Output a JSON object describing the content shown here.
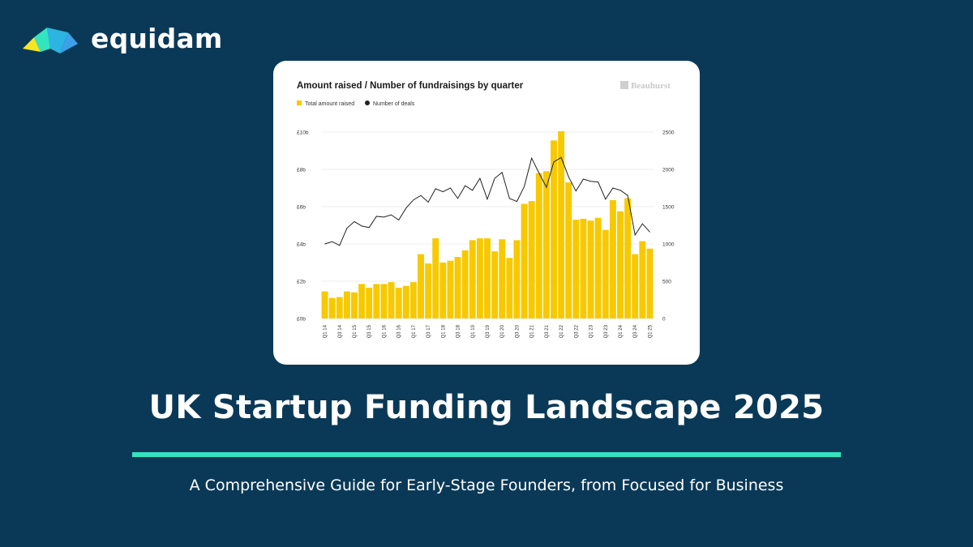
{
  "brand": {
    "name": "equidam"
  },
  "page": {
    "title": "UK Startup Funding Landscape 2025",
    "subtitle": "A Comprehensive Guide for Early-Stage Founders, from Focused for Business"
  },
  "colors": {
    "background": "#0a3957",
    "accent": "#34e3c0",
    "bar": "#f7c900",
    "line": "#222222"
  },
  "chart_data": {
    "type": "bar",
    "title": "Amount raised / Number of fundraisings by quarter",
    "source": "Beauhurst",
    "legend": {
      "placement": "top-left",
      "items": [
        "Total amount raised",
        "Number of deals"
      ]
    },
    "x": [
      "Q1 14",
      "Q2 14",
      "Q3 14",
      "Q4 14",
      "Q1 15",
      "Q2 15",
      "Q3 15",
      "Q4 15",
      "Q1 16",
      "Q2 16",
      "Q3 16",
      "Q4 16",
      "Q1 17",
      "Q2 17",
      "Q3 17",
      "Q4 17",
      "Q1 18",
      "Q2 18",
      "Q3 18",
      "Q4 18",
      "Q1 19",
      "Q2 19",
      "Q3 19",
      "Q4 19",
      "Q1 20",
      "Q2 20",
      "Q3 20",
      "Q4 20",
      "Q1 21",
      "Q2 21",
      "Q3 21",
      "Q4 21",
      "Q1 22",
      "Q2 22",
      "Q3 22",
      "Q4 22",
      "Q1 23",
      "Q2 23",
      "Q3 23",
      "Q4 23",
      "Q1 24",
      "Q2 24",
      "Q3 24",
      "Q4 24",
      "Q1 25"
    ],
    "x_tick_labels": [
      "Q1 14",
      "Q3 14",
      "Q1 15",
      "Q3 15",
      "Q1 16",
      "Q3 16",
      "Q1 17",
      "Q3 17",
      "Q1 18",
      "Q3 18",
      "Q1 19",
      "Q3 19",
      "Q1 20",
      "Q3 20",
      "Q1 21",
      "Q3 21",
      "Q1 22",
      "Q3 22",
      "Q1 23",
      "Q3 23",
      "Q1 24",
      "Q3 24",
      "Q1 25"
    ],
    "series": [
      {
        "name": "Total amount raised",
        "type": "bar",
        "axis": "left",
        "values": [
          1.45,
          1.1,
          1.15,
          1.45,
          1.4,
          1.85,
          1.65,
          1.85,
          1.85,
          1.95,
          1.65,
          1.75,
          1.95,
          3.45,
          2.95,
          4.3,
          3.0,
          3.1,
          3.3,
          3.65,
          4.2,
          4.3,
          4.3,
          3.6,
          4.25,
          3.25,
          4.2,
          6.15,
          6.3,
          7.8,
          7.9,
          9.55,
          10.05,
          7.3,
          5.3,
          5.35,
          5.25,
          5.4,
          4.75,
          6.35,
          5.75,
          6.45,
          3.45,
          4.15,
          3.75
        ]
      },
      {
        "name": "Number of deals",
        "type": "line",
        "axis": "right",
        "values": [
          1000,
          1030,
          980,
          1210,
          1300,
          1240,
          1220,
          1370,
          1360,
          1390,
          1320,
          1480,
          1590,
          1650,
          1560,
          1740,
          1700,
          1750,
          1610,
          1780,
          1720,
          1880,
          1600,
          1880,
          1960,
          1610,
          1570,
          1770,
          2150,
          1950,
          1760,
          2100,
          2160,
          1900,
          1710,
          1870,
          1840,
          1830,
          1600,
          1750,
          1720,
          1650,
          1120,
          1270,
          1160
        ]
      }
    ],
    "y_left": {
      "ticks": [
        "£0b",
        "£2b",
        "£4b",
        "£6b",
        "£8b",
        "£10b"
      ],
      "ylim": [
        0,
        10
      ]
    },
    "y_right": {
      "ticks": [
        "0",
        "500",
        "1000",
        "1500",
        "2000",
        "2500"
      ],
      "ylim": [
        0,
        2500
      ]
    },
    "grid": "horizontal"
  }
}
